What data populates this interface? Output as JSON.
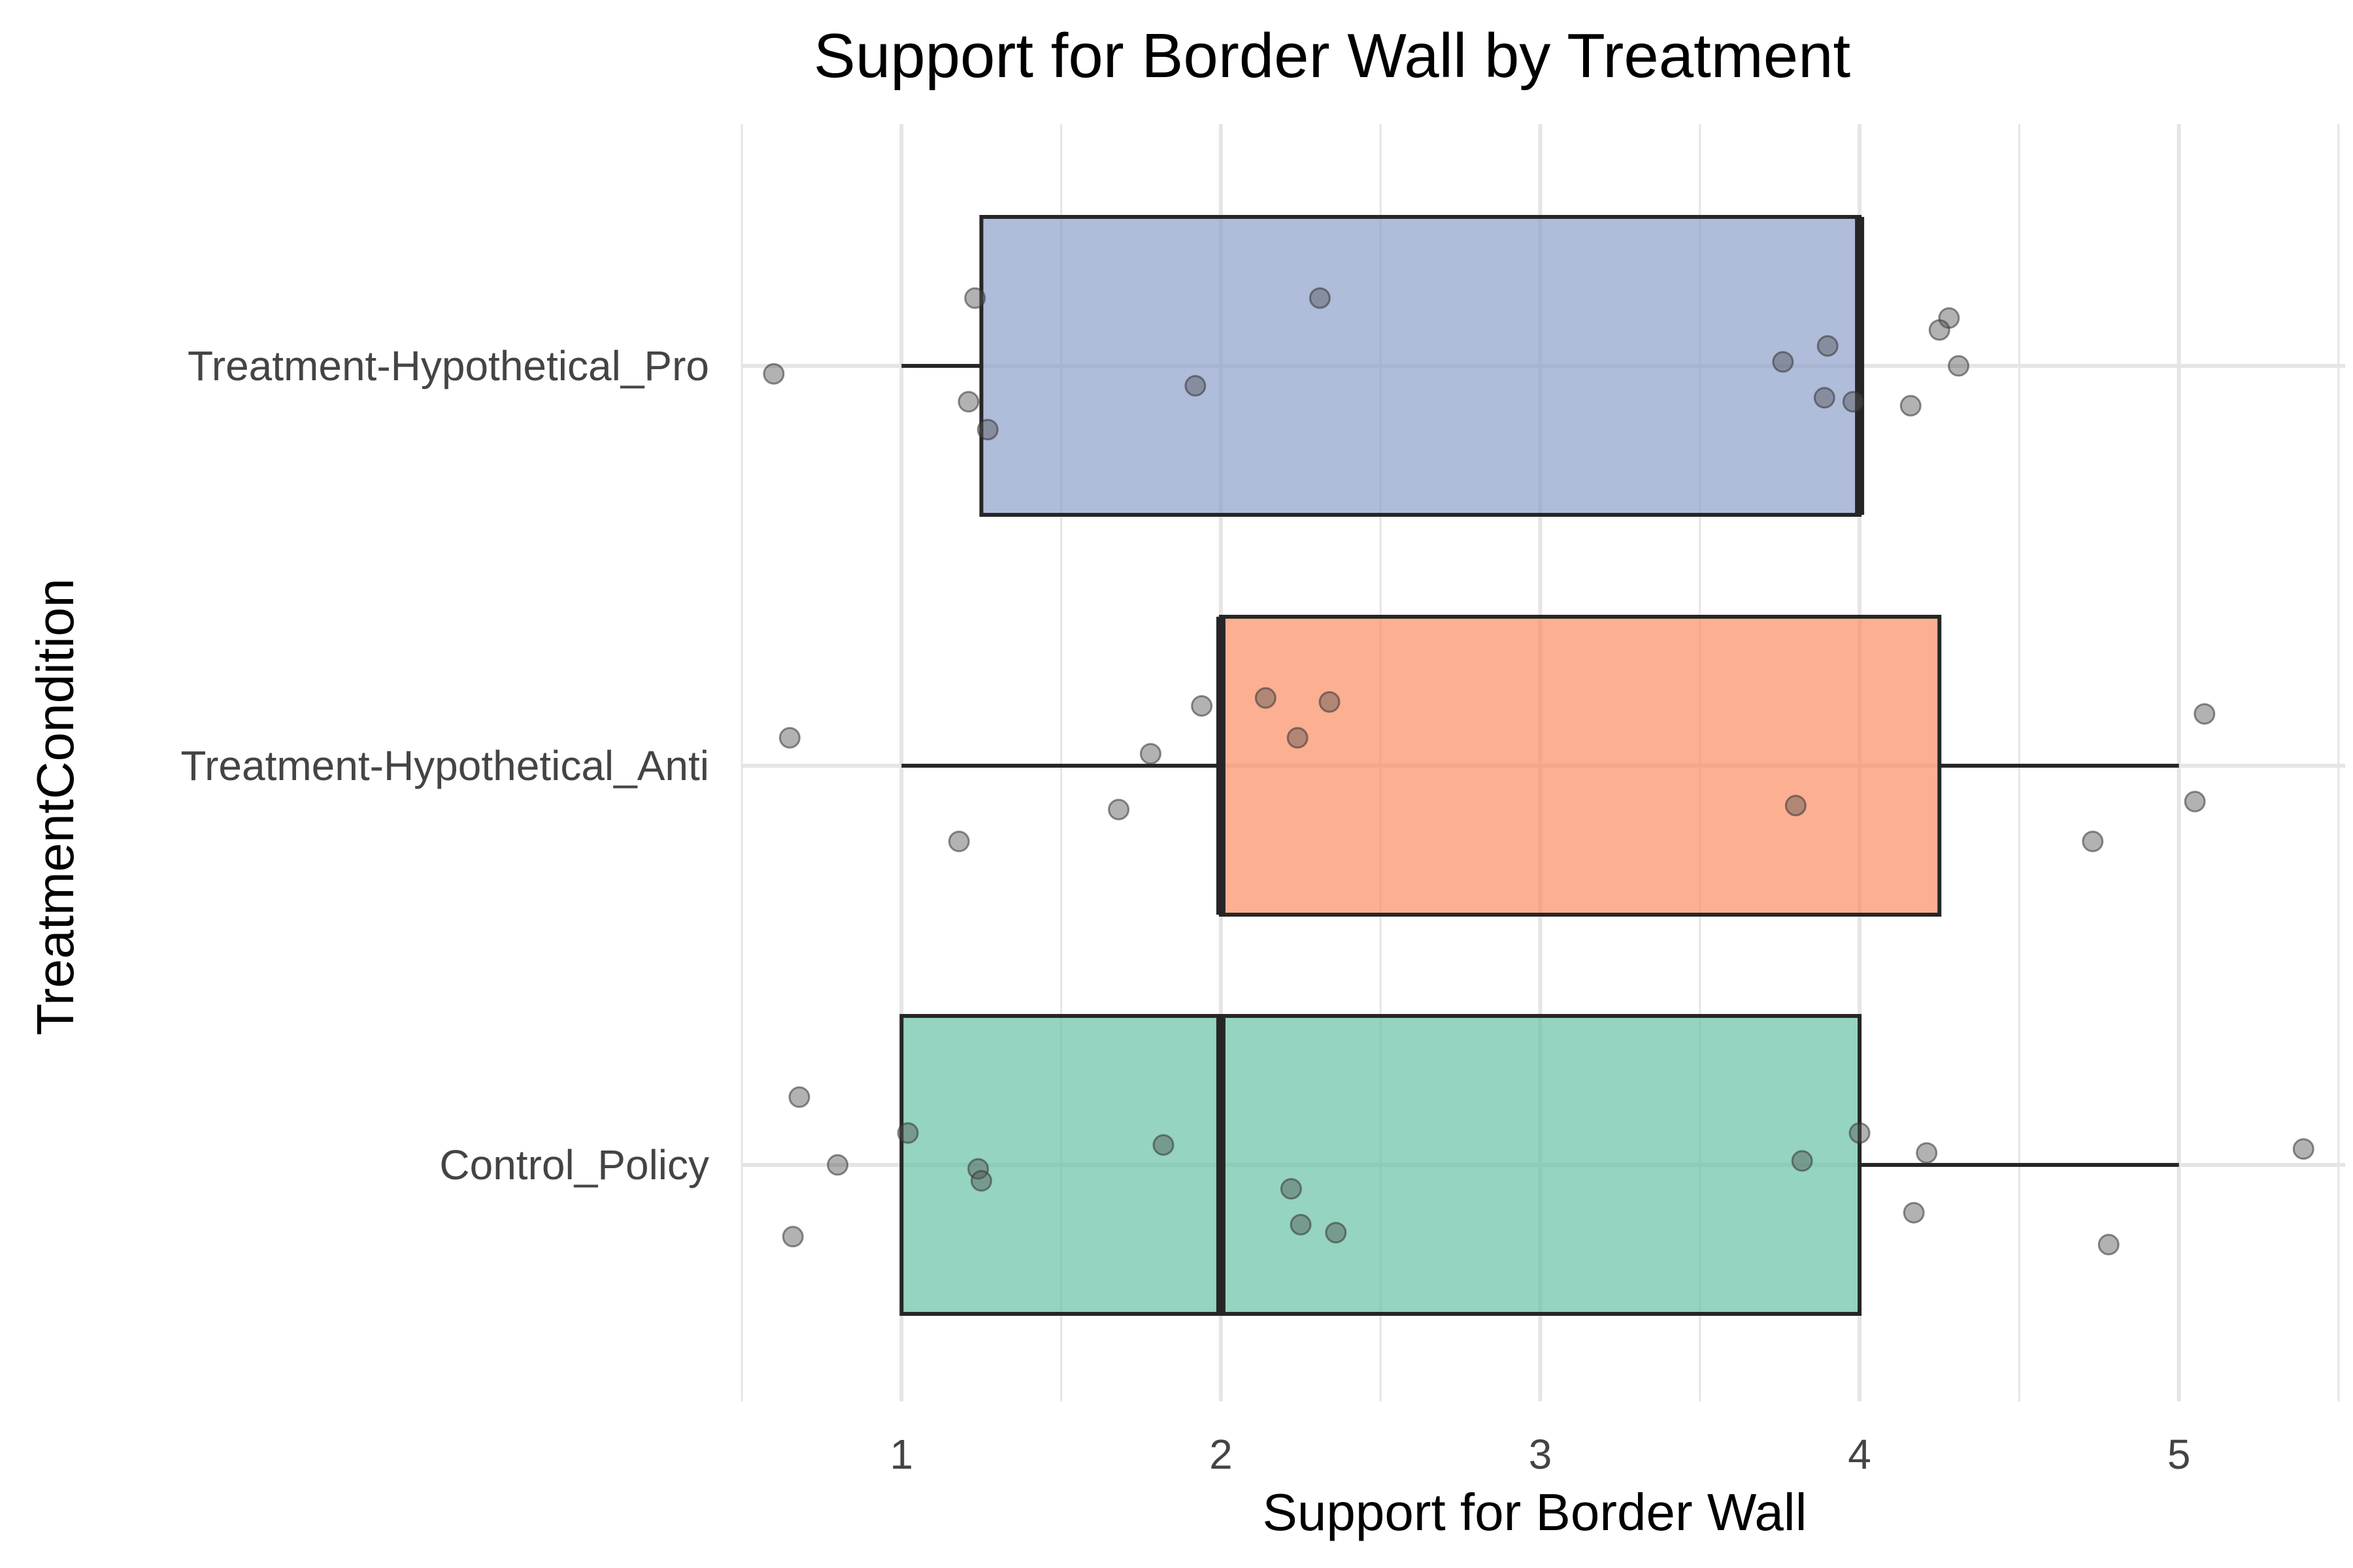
{
  "chart_data": {
    "type": "boxplot",
    "title": "Support for Border Wall by Treatment",
    "xlabel": "Support for Border Wall",
    "ylabel": "TreatmentCondition",
    "xlim": [
      0.5,
      5.5
    ],
    "x_ticks": [
      1,
      2,
      3,
      4,
      5
    ],
    "x_tick_labels": [
      "1",
      "2",
      "3",
      "4",
      "5"
    ],
    "grid": true,
    "orientation": "horizontal",
    "categories": [
      "Treatment-Hypothetical_Pro",
      "Treatment-Hypothetical_Anti",
      "Control_Policy"
    ],
    "colors": {
      "Treatment-Hypothetical_Pro": "#8da0cb",
      "Treatment-Hypothetical_Anti": "#fc8d62",
      "Control_Policy": "#66c2a5",
      "grid": "#e5e5e5",
      "box_outline": "#262626",
      "point": "#555555"
    },
    "boxes": [
      {
        "category": "Treatment-Hypothetical_Pro",
        "whisker_low": 1,
        "q1": 1.25,
        "median": 4,
        "q3": 4,
        "whisker_high": 4,
        "points": [
          {
            "x": 1.23,
            "y": 0.17
          },
          {
            "x": 2.31,
            "y": 0.17
          },
          {
            "x": 4.28,
            "y": 0.12
          },
          {
            "x": 4.25,
            "y": 0.09
          },
          {
            "x": 3.9,
            "y": 0.05
          },
          {
            "x": 3.76,
            "y": 0.01
          },
          {
            "x": 4.31,
            "y": 0.0
          },
          {
            "x": 0.6,
            "y": -0.02
          },
          {
            "x": 1.92,
            "y": -0.05
          },
          {
            "x": 1.21,
            "y": -0.09
          },
          {
            "x": 3.89,
            "y": -0.08
          },
          {
            "x": 3.98,
            "y": -0.09
          },
          {
            "x": 4.16,
            "y": -0.1
          },
          {
            "x": 1.27,
            "y": -0.16
          }
        ]
      },
      {
        "category": "Treatment-Hypothetical_Anti",
        "whisker_low": 1,
        "q1": 2,
        "median": 2,
        "q3": 4.25,
        "whisker_high": 5,
        "points": [
          {
            "x": 1.94,
            "y": 0.15
          },
          {
            "x": 2.14,
            "y": 0.17
          },
          {
            "x": 2.34,
            "y": 0.16
          },
          {
            "x": 5.08,
            "y": 0.13
          },
          {
            "x": 0.65,
            "y": 0.07
          },
          {
            "x": 2.24,
            "y": 0.07
          },
          {
            "x": 1.78,
            "y": 0.03
          },
          {
            "x": 3.8,
            "y": -0.1
          },
          {
            "x": 1.68,
            "y": -0.11
          },
          {
            "x": 5.05,
            "y": -0.09
          },
          {
            "x": 1.18,
            "y": -0.19
          },
          {
            "x": 4.73,
            "y": -0.19
          }
        ]
      },
      {
        "category": "Control_Policy",
        "whisker_low": 1,
        "q1": 1,
        "median": 2,
        "q3": 4,
        "whisker_high": 5,
        "points": [
          {
            "x": 0.68,
            "y": 0.17
          },
          {
            "x": 1.02,
            "y": 0.08
          },
          {
            "x": 1.82,
            "y": 0.05
          },
          {
            "x": 4.0,
            "y": 0.08
          },
          {
            "x": 4.21,
            "y": 0.03
          },
          {
            "x": 5.39,
            "y": 0.04
          },
          {
            "x": 0.8,
            "y": 0.0
          },
          {
            "x": 1.24,
            "y": -0.01
          },
          {
            "x": 1.25,
            "y": -0.04
          },
          {
            "x": 3.82,
            "y": 0.01
          },
          {
            "x": 2.22,
            "y": -0.06
          },
          {
            "x": 4.17,
            "y": -0.12
          },
          {
            "x": 2.25,
            "y": -0.15
          },
          {
            "x": 2.36,
            "y": -0.17
          },
          {
            "x": 0.66,
            "y": -0.18
          },
          {
            "x": 4.78,
            "y": -0.2
          }
        ]
      }
    ]
  }
}
